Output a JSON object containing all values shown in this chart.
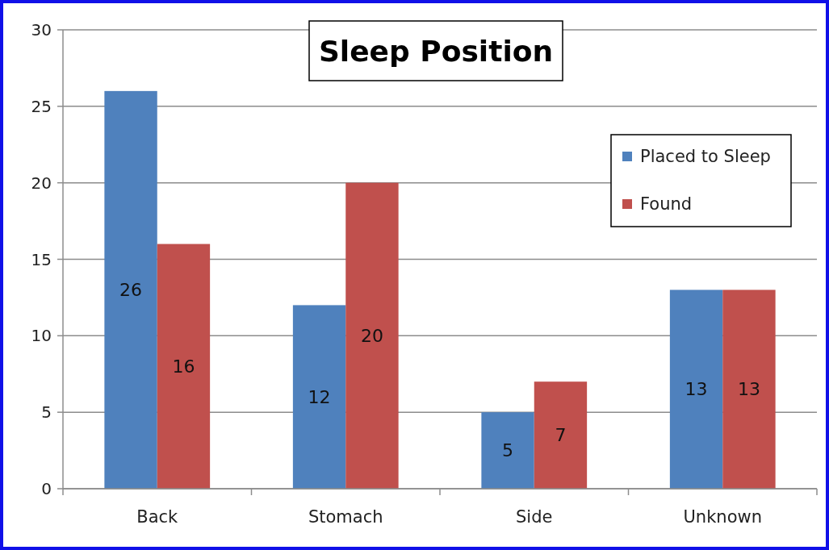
{
  "chart_data": {
    "type": "bar",
    "title": "Sleep Position",
    "categories": [
      "Back",
      "Stomach",
      "Side",
      "Unknown"
    ],
    "series": [
      {
        "name": "Placed to Sleep",
        "color": "#4f81bd",
        "values": [
          26,
          12,
          5,
          13
        ]
      },
      {
        "name": "Found",
        "color": "#c0504d",
        "values": [
          16,
          20,
          7,
          13
        ]
      }
    ],
    "ylim": [
      0,
      30
    ],
    "yticks": [
      0,
      5,
      10,
      15,
      20,
      25,
      30
    ],
    "grid": "y",
    "legend": "right",
    "data_labels": true
  }
}
